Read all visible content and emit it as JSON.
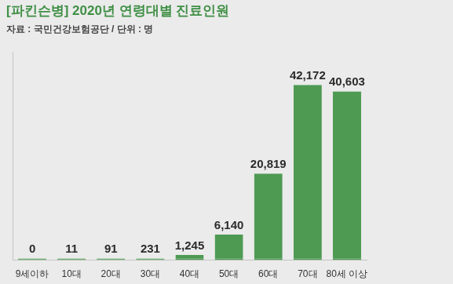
{
  "chart_data": {
    "type": "bar",
    "title": "[파킨슨병] 2020년 연령대별 진료인원",
    "subtitle": "자료 : 국민건강보험공단 / 단위 : 명",
    "categories": [
      "9세이하",
      "10대",
      "20대",
      "30대",
      "40대",
      "50대",
      "60대",
      "70대",
      "80세 이상"
    ],
    "values": [
      0,
      11,
      91,
      231,
      1245,
      6140,
      20819,
      42172,
      40603
    ],
    "value_labels": [
      "0",
      "11",
      "91",
      "231",
      "1,245",
      "6,140",
      "20,819",
      "42,172",
      "40,603"
    ],
    "color": "#4e9a52",
    "ylim": [
      0,
      50000
    ],
    "grid": false,
    "data_labels": true,
    "tick_labels": "x"
  }
}
